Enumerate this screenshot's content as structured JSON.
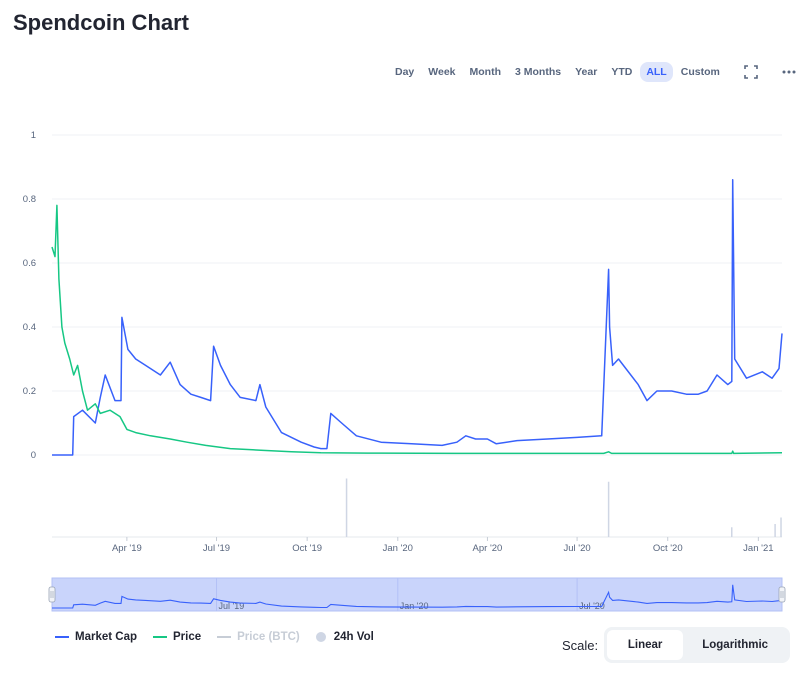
{
  "title": "Spendcoin Chart",
  "toolbar": {
    "ranges": [
      "Day",
      "Week",
      "Month",
      "3 Months",
      "Year",
      "YTD",
      "ALL",
      "Custom"
    ],
    "active": "ALL",
    "icons": [
      "fullscreen-icon",
      "more-icon"
    ]
  },
  "legend": {
    "items": [
      {
        "label": "Market Cap",
        "color": "#3861fb",
        "kind": "line"
      },
      {
        "label": "Price",
        "color": "#16c784",
        "kind": "line"
      },
      {
        "label": "Price (BTC)",
        "color": "#c7cdd6",
        "kind": "line",
        "disabled": true
      },
      {
        "label": "24h Vol",
        "color": "#cfd6e4",
        "kind": "dot"
      }
    ]
  },
  "scale": {
    "label": "Scale:",
    "linear": "Linear",
    "log": "Logarithmic",
    "active": "Linear"
  },
  "colors": {
    "market_cap": "#3861fb",
    "price": "#16c784",
    "volume": "#cfd6e4",
    "navigator_fill": "#c9d4fb",
    "grid": "#eff2f5",
    "axis_text": "#58667e"
  },
  "chart_data": {
    "type": "line",
    "x_tick_labels": [
      "Apr '19",
      "Jul '19",
      "Oct '19",
      "Jan '20",
      "Apr '20",
      "Jul '20",
      "Oct '20",
      "Jan '21"
    ],
    "navigator_tick_labels": [
      "Jul '19",
      "Jan '20",
      "Jul '20"
    ],
    "y_tick_labels": [
      "0",
      "0.2",
      "0.4",
      "0.6",
      "0.8",
      "1"
    ],
    "ylim": [
      0,
      1
    ],
    "xlim": [
      "2019-01-15",
      "2021-01-25"
    ],
    "grid": true,
    "legend_position": "bottom-left",
    "series": [
      {
        "name": "Market Cap",
        "color": "#3861fb",
        "x": [
          "2019-01-15",
          "2019-02-05",
          "2019-02-06",
          "2019-02-15",
          "2019-02-28",
          "2019-03-05",
          "2019-03-10",
          "2019-03-20",
          "2019-03-26",
          "2019-03-27",
          "2019-04-02",
          "2019-04-10",
          "2019-04-20",
          "2019-05-05",
          "2019-05-15",
          "2019-05-25",
          "2019-06-05",
          "2019-06-15",
          "2019-06-25",
          "2019-06-28",
          "2019-07-05",
          "2019-07-15",
          "2019-07-25",
          "2019-08-10",
          "2019-08-14",
          "2019-08-20",
          "2019-09-05",
          "2019-09-25",
          "2019-10-08",
          "2019-10-15",
          "2019-10-21",
          "2019-10-25",
          "2019-11-05",
          "2019-11-20",
          "2019-12-15",
          "2020-01-15",
          "2020-02-15",
          "2020-03-01",
          "2020-03-10",
          "2020-03-20",
          "2020-04-01",
          "2020-04-10",
          "2020-05-01",
          "2020-06-01",
          "2020-07-01",
          "2020-07-26",
          "2020-08-02",
          "2020-08-03",
          "2020-08-06",
          "2020-08-12",
          "2020-09-01",
          "2020-09-10",
          "2020-09-20",
          "2020-10-05",
          "2020-10-20",
          "2020-11-01",
          "2020-11-10",
          "2020-11-20",
          "2020-12-01",
          "2020-12-05",
          "2020-12-06",
          "2020-12-08",
          "2020-12-20",
          "2021-01-05",
          "2021-01-15",
          "2021-01-22",
          "2021-01-25"
        ],
        "values": [
          0,
          0,
          0.12,
          0.14,
          0.1,
          0.18,
          0.25,
          0.17,
          0.17,
          0.43,
          0.33,
          0.3,
          0.28,
          0.25,
          0.29,
          0.22,
          0.19,
          0.18,
          0.17,
          0.34,
          0.28,
          0.22,
          0.18,
          0.17,
          0.22,
          0.15,
          0.07,
          0.04,
          0.025,
          0.02,
          0.02,
          0.13,
          0.1,
          0.06,
          0.04,
          0.035,
          0.03,
          0.04,
          0.06,
          0.05,
          0.05,
          0.035,
          0.045,
          0.05,
          0.055,
          0.06,
          0.58,
          0.4,
          0.28,
          0.3,
          0.22,
          0.17,
          0.2,
          0.2,
          0.19,
          0.19,
          0.2,
          0.25,
          0.22,
          0.23,
          0.86,
          0.3,
          0.24,
          0.26,
          0.24,
          0.27,
          0.38
        ]
      },
      {
        "name": "Price",
        "color": "#16c784",
        "x": [
          "2019-01-15",
          "2019-01-18",
          "2019-01-20",
          "2019-01-22",
          "2019-01-25",
          "2019-01-28",
          "2019-02-02",
          "2019-02-06",
          "2019-02-10",
          "2019-02-15",
          "2019-02-20",
          "2019-02-28",
          "2019-03-05",
          "2019-03-15",
          "2019-03-25",
          "2019-04-01",
          "2019-04-10",
          "2019-04-25",
          "2019-05-15",
          "2019-06-01",
          "2019-06-20",
          "2019-07-15",
          "2019-08-15",
          "2019-09-15",
          "2019-10-15",
          "2019-12-01",
          "2020-03-01",
          "2020-07-28",
          "2020-08-02",
          "2020-08-05",
          "2020-12-05",
          "2020-12-06",
          "2020-12-07",
          "2021-01-25"
        ],
        "values": [
          0.65,
          0.62,
          0.78,
          0.55,
          0.4,
          0.35,
          0.3,
          0.25,
          0.28,
          0.2,
          0.14,
          0.16,
          0.13,
          0.14,
          0.12,
          0.08,
          0.07,
          0.06,
          0.05,
          0.04,
          0.03,
          0.02,
          0.015,
          0.01,
          0.007,
          0.006,
          0.005,
          0.005,
          0.01,
          0.005,
          0.005,
          0.012,
          0.005,
          0.007
        ]
      },
      {
        "name": "24h Vol",
        "color": "#cfd6e4",
        "x": [
          "2019-11-10",
          "2020-08-02",
          "2020-12-05",
          "2021-01-18",
          "2021-01-24"
        ],
        "values": [
          0.9,
          0.85,
          0.15,
          0.2,
          0.3
        ]
      }
    ]
  }
}
